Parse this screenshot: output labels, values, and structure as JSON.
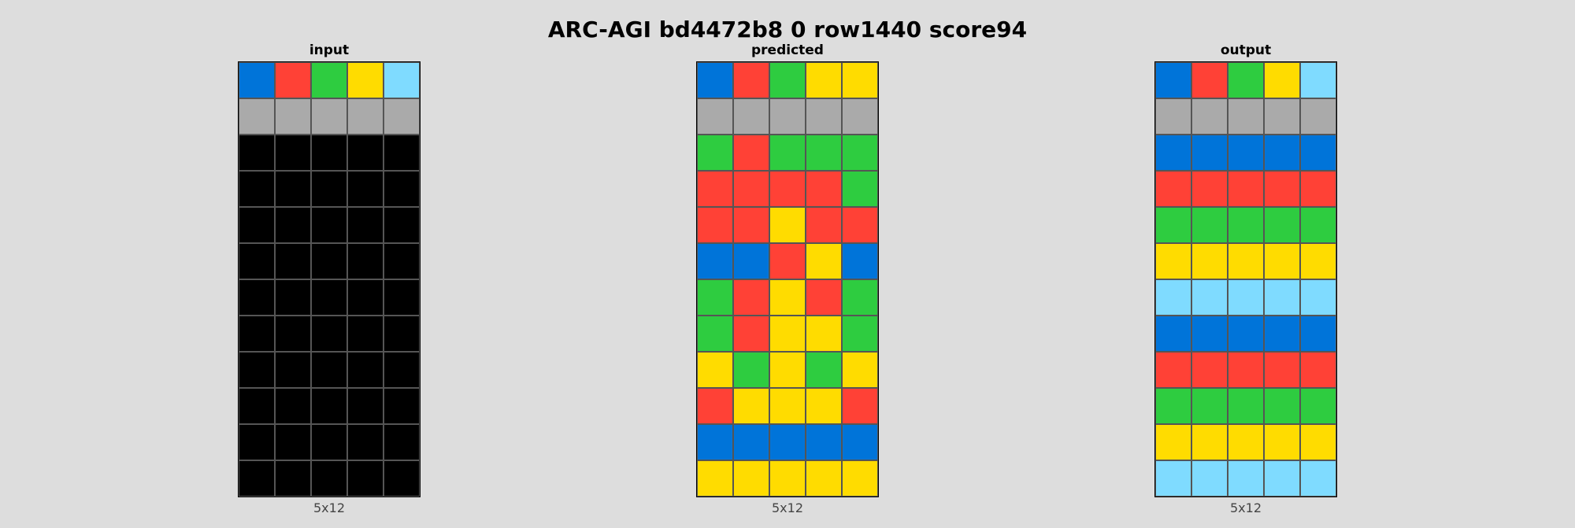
{
  "title": "ARC-AGI bd4472b8 0 row1440 score94",
  "palette": {
    "0": "#000000",
    "1": "#0074d9",
    "2": "#ff4136",
    "3": "#2ecc40",
    "4": "#ffdc00",
    "5": "#aaaaaa",
    "8": "#7fdbff"
  },
  "panels": [
    {
      "id": "input",
      "title": "input",
      "size": "5x12",
      "grid": [
        [
          1,
          2,
          3,
          4,
          8
        ],
        [
          5,
          5,
          5,
          5,
          5
        ],
        [
          0,
          0,
          0,
          0,
          0
        ],
        [
          0,
          0,
          0,
          0,
          0
        ],
        [
          0,
          0,
          0,
          0,
          0
        ],
        [
          0,
          0,
          0,
          0,
          0
        ],
        [
          0,
          0,
          0,
          0,
          0
        ],
        [
          0,
          0,
          0,
          0,
          0
        ],
        [
          0,
          0,
          0,
          0,
          0
        ],
        [
          0,
          0,
          0,
          0,
          0
        ],
        [
          0,
          0,
          0,
          0,
          0
        ],
        [
          0,
          0,
          0,
          0,
          0
        ]
      ]
    },
    {
      "id": "predicted",
      "title": "predicted",
      "size": "5x12",
      "grid": [
        [
          1,
          2,
          3,
          4,
          4
        ],
        [
          5,
          5,
          5,
          5,
          5
        ],
        [
          3,
          2,
          3,
          3,
          3
        ],
        [
          2,
          2,
          2,
          2,
          3
        ],
        [
          2,
          2,
          4,
          2,
          2
        ],
        [
          1,
          1,
          2,
          4,
          1
        ],
        [
          3,
          2,
          4,
          2,
          3
        ],
        [
          3,
          2,
          4,
          4,
          3
        ],
        [
          4,
          3,
          4,
          3,
          4
        ],
        [
          2,
          4,
          4,
          4,
          2
        ],
        [
          1,
          1,
          1,
          1,
          1
        ],
        [
          4,
          4,
          4,
          4,
          4
        ]
      ]
    },
    {
      "id": "output",
      "title": "output",
      "size": "5x12",
      "grid": [
        [
          1,
          2,
          3,
          4,
          8
        ],
        [
          5,
          5,
          5,
          5,
          5
        ],
        [
          1,
          1,
          1,
          1,
          1
        ],
        [
          2,
          2,
          2,
          2,
          2
        ],
        [
          3,
          3,
          3,
          3,
          3
        ],
        [
          4,
          4,
          4,
          4,
          4
        ],
        [
          8,
          8,
          8,
          8,
          8
        ],
        [
          1,
          1,
          1,
          1,
          1
        ],
        [
          2,
          2,
          2,
          2,
          2
        ],
        [
          3,
          3,
          3,
          3,
          3
        ],
        [
          4,
          4,
          4,
          4,
          4
        ],
        [
          8,
          8,
          8,
          8,
          8
        ]
      ]
    }
  ]
}
